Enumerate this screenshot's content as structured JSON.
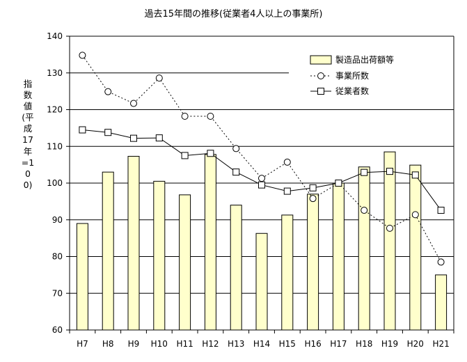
{
  "chart_data": {
    "type": "bar",
    "title": "過去15年間の推移(従業者4人以上の事業所)",
    "ylabel": "指数値(平成17年=100)",
    "xlabel": "",
    "categories": [
      "H7",
      "H8",
      "H9",
      "H10",
      "H11",
      "H12",
      "H13",
      "H14",
      "H15",
      "H16",
      "H17",
      "H18",
      "H19",
      "H20",
      "H21"
    ],
    "ylim": [
      60,
      140
    ],
    "yticks": [
      60,
      70,
      80,
      90,
      100,
      110,
      120,
      130,
      140
    ],
    "grid": true,
    "legend_position": "top-right",
    "series": [
      {
        "name": "製造品出荷額等",
        "kind": "bar",
        "color": "#ffffcc",
        "values": [
          89,
          103,
          107.3,
          100.5,
          96.8,
          107.8,
          94,
          86.3,
          91.3,
          97,
          100,
          104.4,
          108.5,
          104.9,
          75
        ]
      },
      {
        "name": "事業所数",
        "kind": "line-dotted",
        "marker": "circle",
        "values": [
          134.8,
          124.9,
          121.7,
          128.6,
          118.2,
          118.2,
          109.4,
          101.3,
          105.7,
          95.8,
          100,
          92.6,
          87.7,
          91.4,
          78.5
        ]
      },
      {
        "name": "従業者数",
        "kind": "line-solid",
        "marker": "square",
        "values": [
          114.5,
          113.8,
          112.2,
          112.3,
          107.5,
          108.1,
          103,
          99.5,
          97.8,
          98.7,
          100,
          102.9,
          103.2,
          102.2,
          92.6
        ]
      }
    ]
  }
}
